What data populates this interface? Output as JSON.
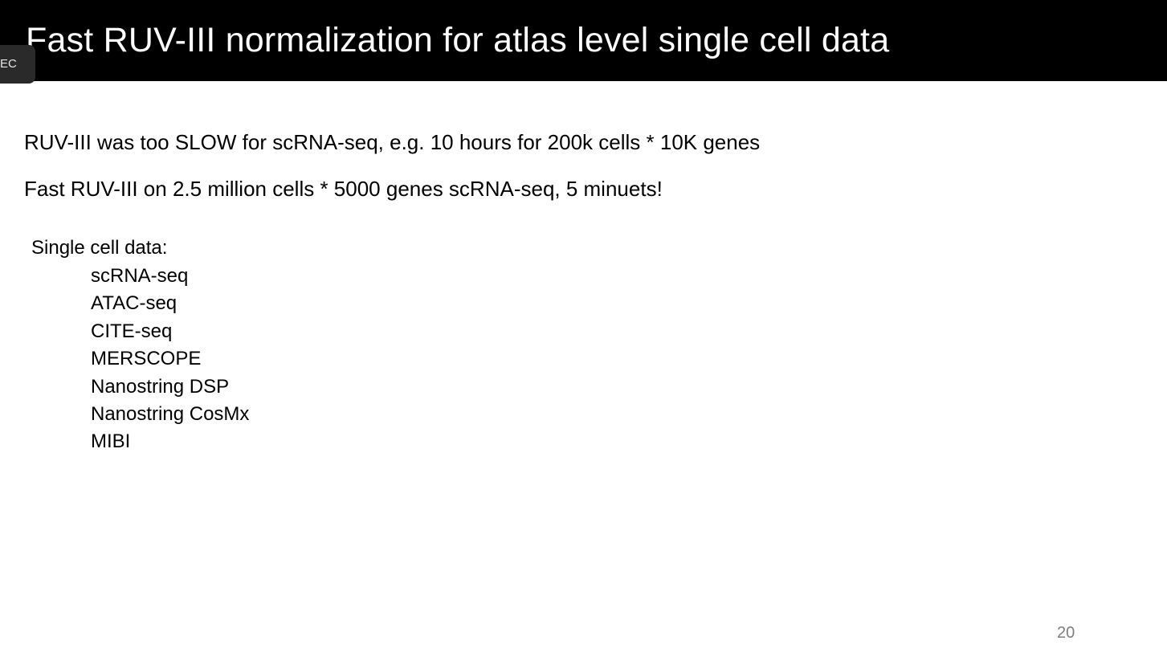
{
  "slide": {
    "title": "Fast RUV-III normalization for atlas level single cell data",
    "rec_badge": "EC",
    "lines": [
      "RUV-III was too SLOW for scRNA-seq, e.g. 10 hours for 200k cells * 10K genes",
      "Fast RUV-III on 2.5 million cells * 5000 genes scRNA-seq, 5 minuets!"
    ],
    "single_cell": {
      "heading": "Single cell data:",
      "items": [
        "scRNA-seq",
        "ATAC-seq",
        "CITE-seq",
        "MERSCOPE",
        "Nanostring DSP",
        "Nanostring CosMx",
        "MIBI"
      ]
    },
    "page_number": "20"
  },
  "colors": {
    "title_bar": "#000000",
    "title_text": "#ffffff",
    "body_text": "#000000",
    "page_number": "#7f7f7f",
    "badge_bg": "#2a2a2a"
  }
}
